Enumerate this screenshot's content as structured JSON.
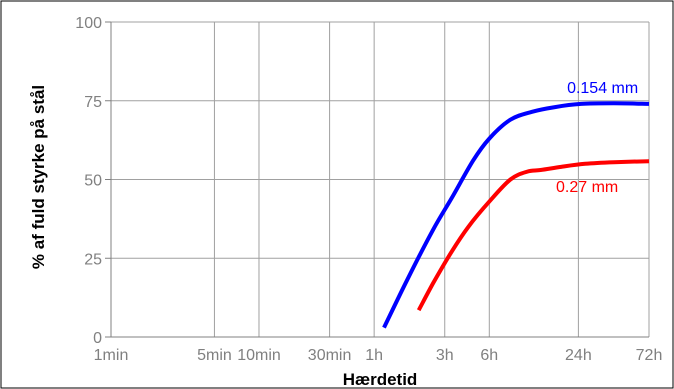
{
  "chart_data": {
    "type": "line",
    "xlabel": "Hærdetid",
    "ylabel": "% af fuld styrke på stål",
    "x_scale": "log",
    "x_unit": "minutes",
    "xlim": [
      1,
      4320
    ],
    "ylim": [
      0,
      100
    ],
    "x_ticks": [
      {
        "value": 1,
        "label": "1min"
      },
      {
        "value": 5,
        "label": "5min"
      },
      {
        "value": 10,
        "label": "10min"
      },
      {
        "value": 30,
        "label": "30min"
      },
      {
        "value": 60,
        "label": "1h"
      },
      {
        "value": 180,
        "label": "3h"
      },
      {
        "value": 360,
        "label": "6h"
      },
      {
        "value": 1440,
        "label": "24h"
      },
      {
        "value": 4320,
        "label": "72h"
      }
    ],
    "y_ticks": [
      0,
      25,
      50,
      75,
      100
    ],
    "grid": true,
    "series": [
      {
        "name": "0.154 mm",
        "color": "#0000ff",
        "x": [
          70,
          100,
          150,
          200,
          280,
          360,
          500,
          700,
          1000,
          1500,
          2500,
          4320
        ],
        "y": [
          3,
          18,
          34,
          44,
          56,
          63,
          69,
          71.5,
          73,
          74,
          74.2,
          74
        ]
      },
      {
        "name": "0.27 mm",
        "color": "#ff0000",
        "x": [
          120,
          150,
          200,
          260,
          360,
          500,
          650,
          800,
          1100,
          1600,
          2500,
          4320
        ],
        "y": [
          8.5,
          17,
          27,
          35,
          43,
          50,
          52.5,
          53,
          54,
          55,
          55.5,
          55.8
        ]
      }
    ]
  }
}
